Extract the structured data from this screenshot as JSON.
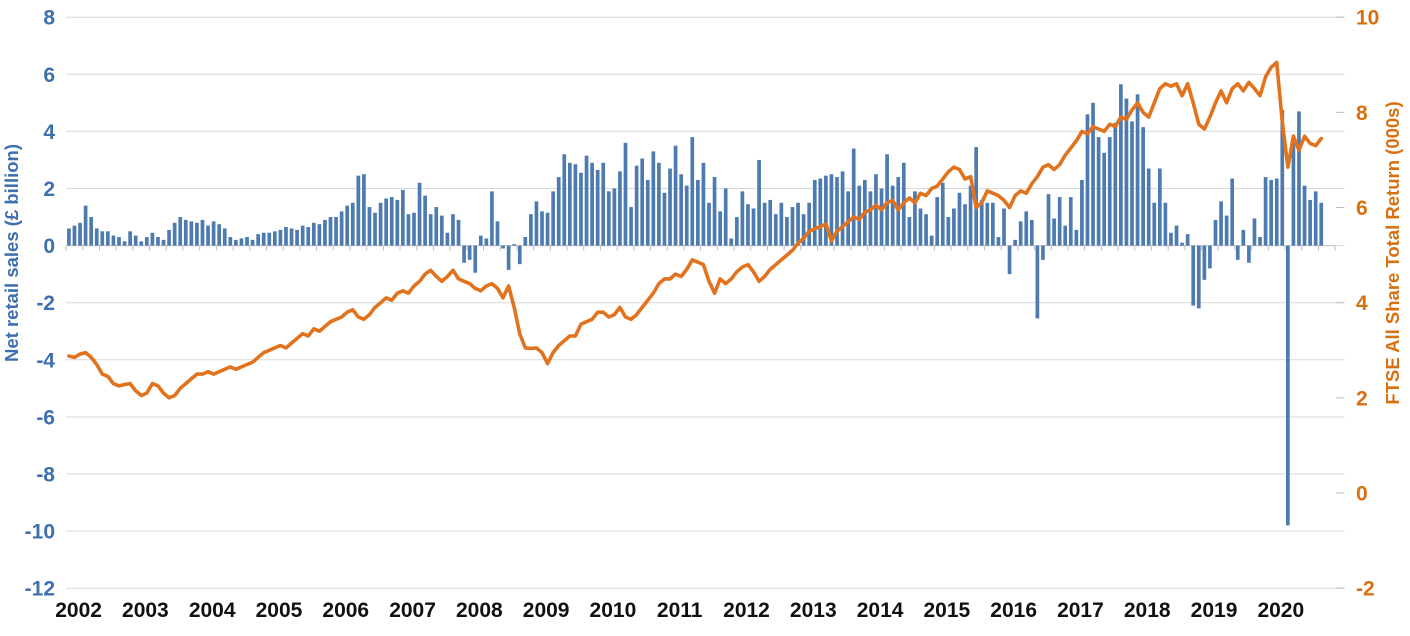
{
  "chart_data": {
    "type": "combo-bar-line",
    "title": "",
    "grid": true,
    "legend": "none",
    "x_axis": {
      "year_labels": [
        "2002",
        "2003",
        "2004",
        "2005",
        "2006",
        "2007",
        "2008",
        "2009",
        "2010",
        "2011",
        "2012",
        "2013",
        "2014",
        "2015",
        "2016",
        "2017",
        "2018",
        "2019",
        "2020"
      ],
      "frequency": "monthly",
      "start": "2002-01",
      "end": "2020-10",
      "label_color": "#111111"
    },
    "left_axis": {
      "title": "Net retail sales (£ billion)",
      "ticks": [
        8,
        6,
        4,
        2,
        0,
        -2,
        -4,
        -6,
        -8,
        -10,
        -12
      ],
      "range": [
        -12,
        8
      ],
      "color": "#3e6fae"
    },
    "right_axis": {
      "title": "FTSE All Share Total Return (000s)",
      "ticks": [
        10,
        8,
        6,
        4,
        2,
        0,
        -2
      ],
      "range": [
        -2,
        10
      ],
      "color": "#d9700f"
    },
    "series": [
      {
        "name": "Net retail sales (£ billion)",
        "type": "bar",
        "axis": "left",
        "color": "#4d7bb0",
        "values": [
          0.6,
          0.7,
          0.8,
          1.4,
          1.0,
          0.6,
          0.5,
          0.5,
          0.35,
          0.3,
          0.15,
          0.5,
          0.35,
          0.15,
          0.3,
          0.45,
          0.3,
          0.2,
          0.55,
          0.8,
          1.0,
          0.9,
          0.85,
          0.8,
          0.9,
          0.7,
          0.85,
          0.75,
          0.6,
          0.3,
          0.2,
          0.25,
          0.3,
          0.2,
          0.4,
          0.45,
          0.45,
          0.5,
          0.55,
          0.65,
          0.6,
          0.55,
          0.7,
          0.65,
          0.8,
          0.75,
          0.9,
          1.0,
          1.0,
          1.2,
          1.4,
          1.5,
          2.45,
          2.5,
          1.35,
          1.15,
          1.5,
          1.65,
          1.7,
          1.6,
          1.95,
          1.1,
          1.15,
          2.2,
          1.75,
          1.1,
          1.35,
          1.05,
          0.45,
          1.1,
          0.9,
          -0.6,
          -0.5,
          -0.95,
          0.35,
          0.25,
          1.9,
          0.85,
          -0.1,
          -0.85,
          0.05,
          -0.65,
          0.3,
          1.1,
          1.55,
          1.2,
          1.15,
          1.9,
          2.4,
          3.2,
          2.9,
          2.85,
          2.55,
          3.15,
          2.9,
          2.65,
          2.9,
          1.9,
          2.0,
          2.6,
          3.6,
          1.35,
          2.8,
          3.05,
          2.3,
          3.3,
          2.9,
          1.85,
          2.7,
          3.5,
          2.5,
          2.1,
          3.8,
          2.3,
          2.9,
          1.5,
          2.4,
          1.2,
          2.0,
          0.25,
          1.0,
          1.9,
          1.45,
          1.3,
          3.0,
          1.5,
          1.6,
          1.1,
          1.5,
          1.0,
          1.35,
          1.5,
          1.1,
          1.5,
          2.3,
          2.35,
          2.45,
          2.5,
          2.4,
          2.6,
          1.9,
          3.4,
          2.1,
          2.3,
          1.9,
          2.5,
          2.0,
          3.2,
          2.1,
          2.4,
          2.9,
          1.0,
          1.9,
          1.3,
          1.1,
          0.35,
          1.7,
          2.2,
          1.0,
          1.3,
          1.85,
          1.45,
          2.1,
          3.45,
          1.6,
          1.5,
          1.5,
          0.3,
          1.3,
          -1.0,
          0.2,
          0.85,
          1.2,
          0.9,
          -2.55,
          -0.5,
          1.8,
          0.95,
          1.7,
          0.7,
          1.7,
          0.55,
          2.3,
          4.6,
          5.0,
          3.8,
          3.25,
          3.8,
          4.3,
          5.65,
          5.15,
          4.35,
          5.3,
          4.15,
          2.7,
          1.5,
          2.7,
          1.5,
          0.45,
          0.7,
          0.1,
          0.4,
          -2.1,
          -2.2,
          -1.2,
          -0.8,
          0.9,
          1.55,
          1.05,
          2.35,
          -0.5,
          0.55,
          -0.6,
          0.95,
          0.3,
          2.4,
          2.3,
          2.35,
          4.75,
          -9.8,
          3.75,
          4.7,
          2.1,
          1.6,
          1.9,
          1.5
        ]
      },
      {
        "name": "FTSE All Share Total Return (000s)",
        "type": "line",
        "axis": "right",
        "color": "#e2731e",
        "values": [
          2.88,
          2.85,
          2.92,
          2.95,
          2.85,
          2.7,
          2.5,
          2.45,
          2.3,
          2.25,
          2.28,
          2.3,
          2.15,
          2.05,
          2.1,
          2.3,
          2.25,
          2.1,
          2.0,
          2.05,
          2.2,
          2.3,
          2.4,
          2.5,
          2.5,
          2.55,
          2.5,
          2.55,
          2.6,
          2.65,
          2.6,
          2.65,
          2.7,
          2.75,
          2.85,
          2.95,
          3.0,
          3.05,
          3.1,
          3.05,
          3.15,
          3.25,
          3.35,
          3.3,
          3.45,
          3.4,
          3.5,
          3.6,
          3.65,
          3.7,
          3.8,
          3.85,
          3.7,
          3.65,
          3.75,
          3.9,
          4.0,
          4.1,
          4.05,
          4.2,
          4.25,
          4.2,
          4.35,
          4.45,
          4.6,
          4.68,
          4.55,
          4.45,
          4.55,
          4.68,
          4.5,
          4.45,
          4.4,
          4.3,
          4.25,
          4.35,
          4.4,
          4.3,
          4.1,
          4.35,
          3.9,
          3.35,
          3.05,
          3.04,
          3.05,
          2.95,
          2.72,
          2.95,
          3.1,
          3.2,
          3.3,
          3.3,
          3.55,
          3.6,
          3.65,
          3.8,
          3.8,
          3.7,
          3.75,
          3.9,
          3.7,
          3.65,
          3.75,
          3.9,
          4.05,
          4.2,
          4.4,
          4.5,
          4.5,
          4.6,
          4.55,
          4.7,
          4.9,
          4.85,
          4.8,
          4.45,
          4.2,
          4.5,
          4.4,
          4.5,
          4.65,
          4.75,
          4.8,
          4.65,
          4.45,
          4.55,
          4.7,
          4.8,
          4.9,
          5.0,
          5.1,
          5.25,
          5.35,
          5.5,
          5.55,
          5.6,
          5.65,
          5.3,
          5.5,
          5.6,
          5.7,
          5.8,
          5.75,
          5.9,
          5.95,
          6.05,
          5.95,
          6.1,
          6.15,
          5.95,
          6.1,
          6.2,
          6.1,
          6.3,
          6.25,
          6.4,
          6.45,
          6.6,
          6.75,
          6.85,
          6.8,
          6.6,
          6.65,
          6.0,
          6.1,
          6.35,
          6.3,
          6.25,
          6.15,
          6.0,
          6.25,
          6.35,
          6.3,
          6.5,
          6.65,
          6.85,
          6.9,
          6.8,
          6.9,
          7.1,
          7.25,
          7.4,
          7.6,
          7.55,
          7.7,
          7.65,
          7.6,
          7.75,
          7.7,
          7.9,
          7.85,
          8.05,
          8.2,
          8.0,
          7.9,
          8.2,
          8.5,
          8.6,
          8.55,
          8.6,
          8.35,
          8.6,
          8.2,
          7.75,
          7.65,
          7.9,
          8.2,
          8.45,
          8.2,
          8.5,
          8.6,
          8.45,
          8.63,
          8.5,
          8.35,
          8.75,
          8.95,
          9.05,
          7.8,
          6.85,
          7.5,
          7.2,
          7.5,
          7.35,
          7.3,
          7.45
        ]
      }
    ]
  }
}
